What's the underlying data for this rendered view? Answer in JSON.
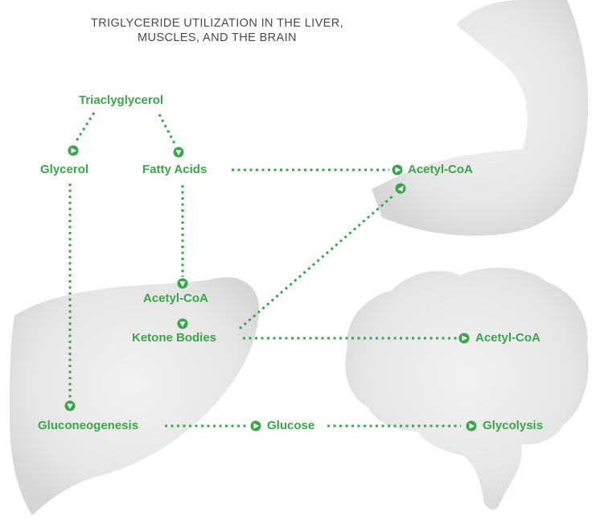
{
  "title": {
    "line1": "TRIGLYCERIDE UTILIZATION IN THE LIVER,",
    "line2": "MUSCLES, AND THE BRAIN"
  },
  "nodes": {
    "triacylglycerol": "Triaclyglycerol",
    "glycerol": "Glycerol",
    "fatty_acids": "Fatty Acids",
    "muscle_acetyl_coa": "Acetyl-CoA",
    "liver_acetyl_coa": "Acetyl-CoA",
    "ketone_bodies": "Ketone Bodies",
    "brain_acetyl_coa": "Acetyl-CoA",
    "gluconeogenesis": "Gluconeogenesis",
    "glucose": "Glucose",
    "glycolysis": "Glycolysis"
  },
  "regions": [
    "liver-silhouette",
    "muscle-arm-silhouette",
    "brain-silhouette"
  ],
  "colors": {
    "accent": "#3aa64c",
    "title": "#4a4a4a",
    "silhouette": "#e8e8e8",
    "silhouette_shade": "#d7d7d7"
  }
}
